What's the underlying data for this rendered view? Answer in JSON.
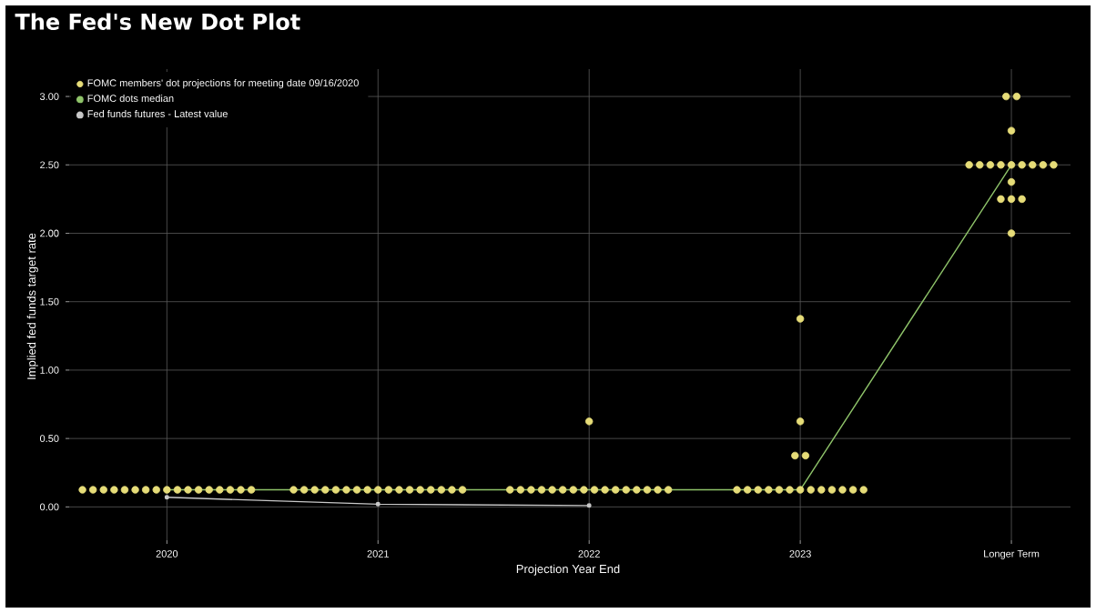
{
  "chart_data": {
    "type": "scatter",
    "title": "The Fed's New Dot Plot",
    "xlabel": "Projection Year End",
    "ylabel": "Implied fed funds target rate",
    "xlim": [
      2019.52,
      2024.28
    ],
    "xticks": [
      2020,
      2021,
      2022,
      2023,
      {
        "value": 2024,
        "label": "Longer Term"
      }
    ],
    "ylim": [
      -0.27,
      3.2
    ],
    "yticks": [
      {
        "value": 0,
        "label": "0.00"
      },
      {
        "value": 0.5,
        "label": "0.50"
      },
      {
        "value": 1,
        "label": "1.00"
      },
      {
        "value": 1.5,
        "label": "1.50"
      },
      {
        "value": 2,
        "label": "2.00"
      },
      {
        "value": 2.5,
        "label": "2.50"
      },
      {
        "value": 3,
        "label": "3.00"
      }
    ],
    "grid": true,
    "legend": "top left",
    "series": [
      {
        "name": "FOMC members' dot projections for meeting date 09/16/2020",
        "marker": "circle",
        "color": "#e6dc78",
        "x": [
          2019.6,
          2019.65,
          2019.7,
          2019.75,
          2019.8,
          2019.85,
          2019.9,
          2019.95,
          2020,
          2020.05,
          2020.1,
          2020.15,
          2020.2,
          2020.25,
          2020.3,
          2020.35,
          2020.4,
          2020.6,
          2020.65,
          2020.7,
          2020.75,
          2020.8,
          2020.85,
          2020.9,
          2020.95,
          2021,
          2021.05,
          2021.1,
          2021.15,
          2021.2,
          2021.25,
          2021.3,
          2021.35,
          2021.4,
          2021.625,
          2021.675,
          2021.725,
          2021.775,
          2021.825,
          2021.875,
          2021.925,
          2021.975,
          2022.025,
          2022.075,
          2022.125,
          2022.175,
          2022.225,
          2022.275,
          2022.325,
          2022.375,
          2022,
          2022.7,
          2022.75,
          2022.8,
          2022.85,
          2022.9,
          2022.95,
          2023,
          2023.05,
          2023.1,
          2023.15,
          2023.2,
          2023.25,
          2023.3,
          2022.975,
          2023.025,
          2023,
          2023,
          2023.8,
          2023.85,
          2023.9,
          2023.95,
          2024,
          2024.05,
          2024.1,
          2024.15,
          2024.2,
          2023.975,
          2024.025,
          2024,
          2024,
          2023.95,
          2024,
          2024.05,
          2024
        ],
        "values": [
          0.125,
          0.125,
          0.125,
          0.125,
          0.125,
          0.125,
          0.125,
          0.125,
          0.125,
          0.125,
          0.125,
          0.125,
          0.125,
          0.125,
          0.125,
          0.125,
          0.125,
          0.125,
          0.125,
          0.125,
          0.125,
          0.125,
          0.125,
          0.125,
          0.125,
          0.125,
          0.125,
          0.125,
          0.125,
          0.125,
          0.125,
          0.125,
          0.125,
          0.125,
          0.125,
          0.125,
          0.125,
          0.125,
          0.125,
          0.125,
          0.125,
          0.125,
          0.125,
          0.125,
          0.125,
          0.125,
          0.125,
          0.125,
          0.125,
          0.125,
          0.625,
          0.125,
          0.125,
          0.125,
          0.125,
          0.125,
          0.125,
          0.125,
          0.125,
          0.125,
          0.125,
          0.125,
          0.125,
          0.125,
          0.375,
          0.375,
          0.625,
          1.375,
          2.5,
          2.5,
          2.5,
          2.5,
          2.5,
          2.5,
          2.5,
          2.5,
          2.5,
          3.0,
          3.0,
          2.75,
          2.375,
          2.25,
          2.25,
          2.25,
          2.0
        ]
      },
      {
        "name": "FOMC dots median",
        "type": "line",
        "marker": "none",
        "color": "#8fc46a",
        "x": [
          2020,
          2021,
          2022,
          2023,
          2024
        ],
        "values": [
          0.125,
          0.125,
          0.125,
          0.125,
          2.5
        ]
      },
      {
        "name": "Fed funds futures - Latest value",
        "type": "line",
        "marker": "circle",
        "color": "#c8c8c8",
        "x": [
          2020,
          2021,
          2022
        ],
        "values": [
          0.07,
          0.02,
          0.01
        ]
      }
    ]
  }
}
